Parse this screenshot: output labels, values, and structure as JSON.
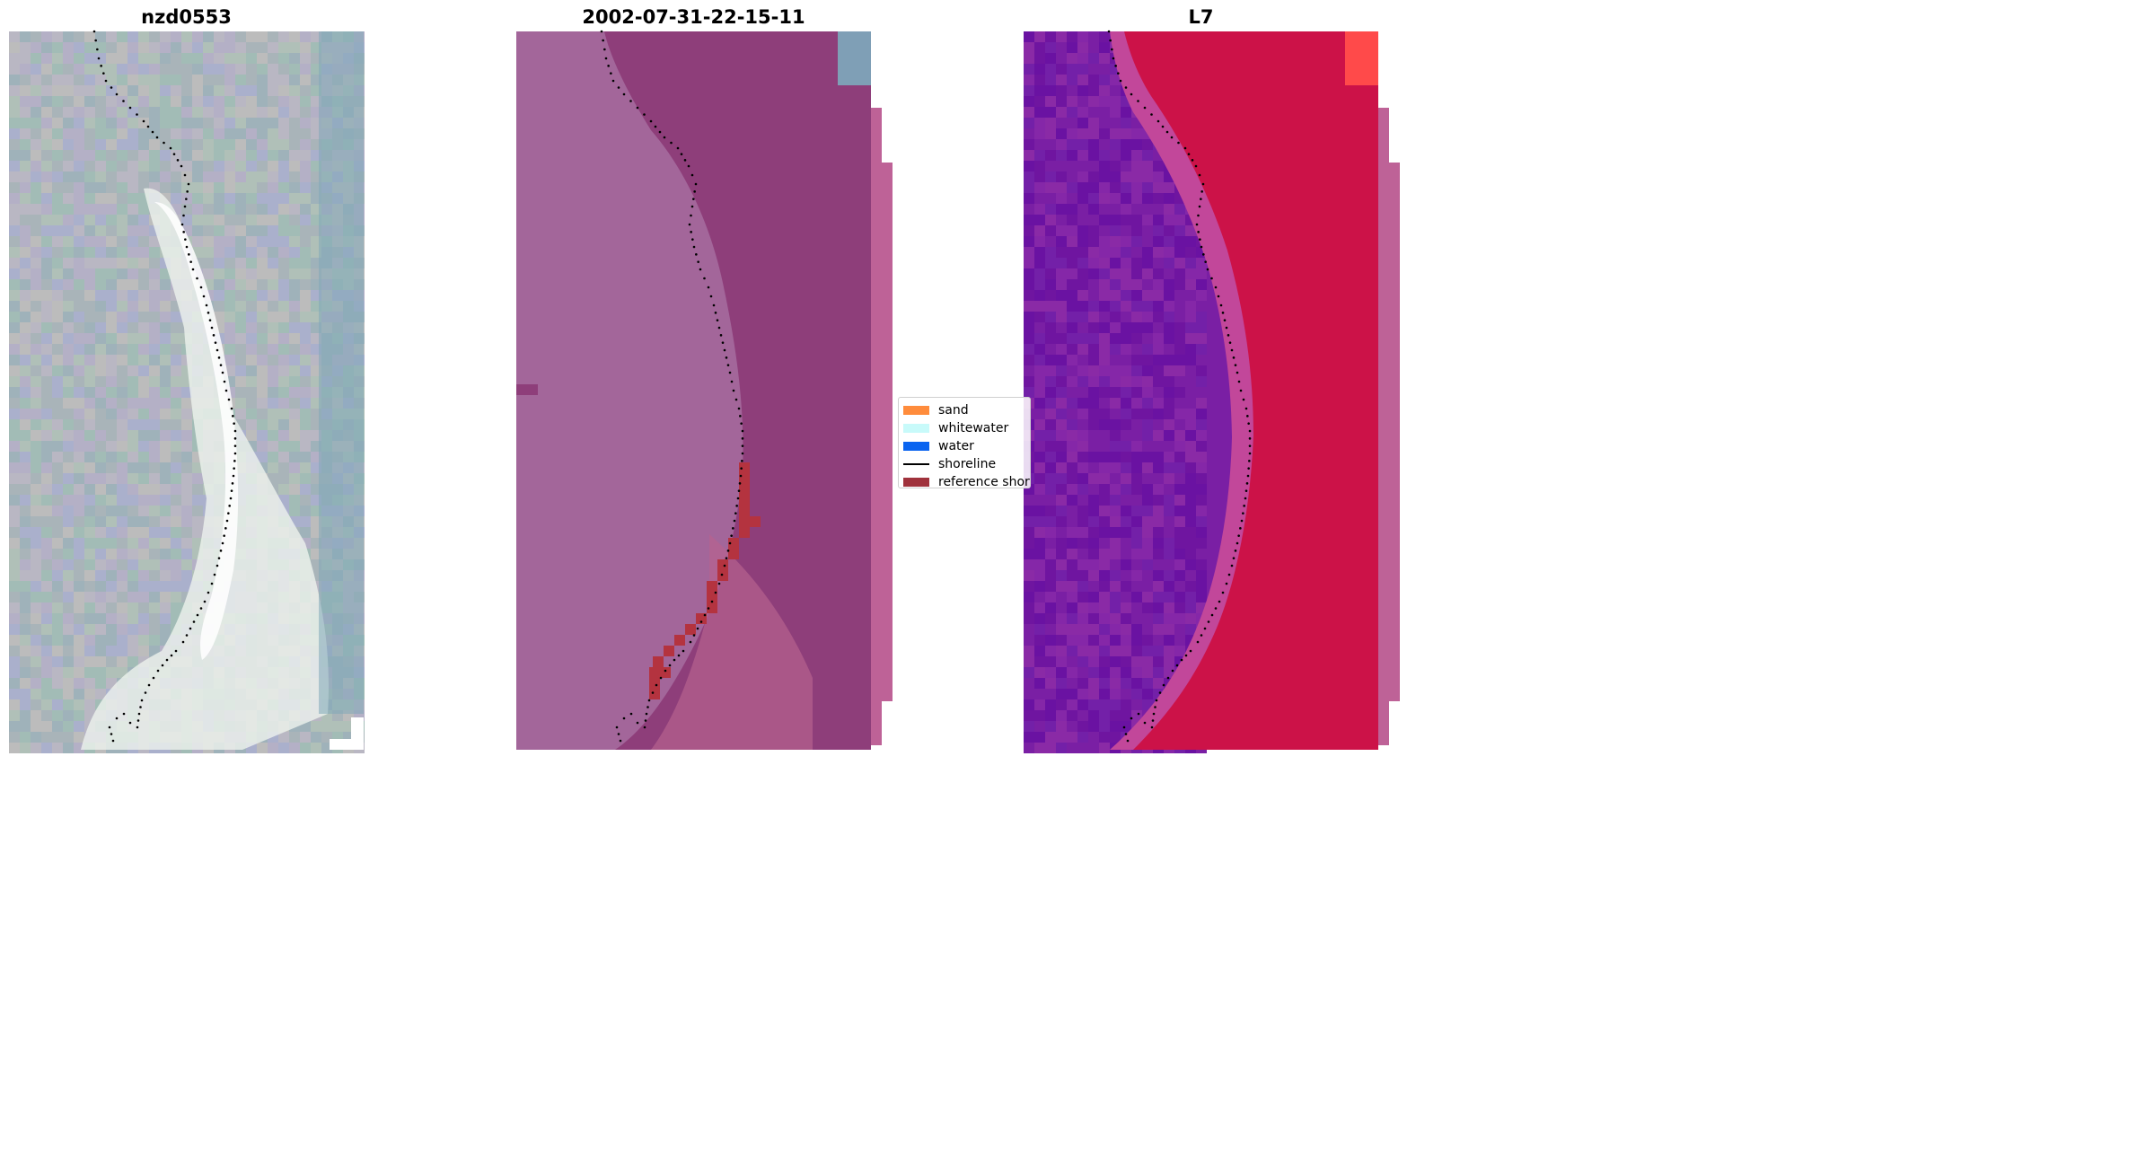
{
  "panels": [
    {
      "id": "rgb",
      "title": "nzd0553"
    },
    {
      "id": "classified",
      "title": "2002-07-31-22-15-11"
    },
    {
      "id": "index",
      "title": "L7"
    }
  ],
  "legend": {
    "items": [
      {
        "label": "sand",
        "type": "patch",
        "color": "#ff8c3c"
      },
      {
        "label": "whitewater",
        "type": "patch",
        "color": "#c8fafa"
      },
      {
        "label": "water",
        "type": "patch",
        "color": "#0a64f0"
      },
      {
        "label": "shoreline",
        "type": "line",
        "color": "#000000"
      },
      {
        "label": "reference shoreline",
        "type": "patch",
        "color": "#a0323c"
      }
    ]
  },
  "colors": {
    "rgb_base": "#a9b4b9",
    "rgb_beach": "#eef2ee",
    "rgb_water": "#7fa7b8",
    "classified_base": "#a3669a",
    "classified_dark": "#8e3e7a",
    "classified_reference": "#b4333f",
    "index_land": "#7a1fa4",
    "index_water": "#cc1248",
    "index_edge": "#ff4a4a"
  }
}
